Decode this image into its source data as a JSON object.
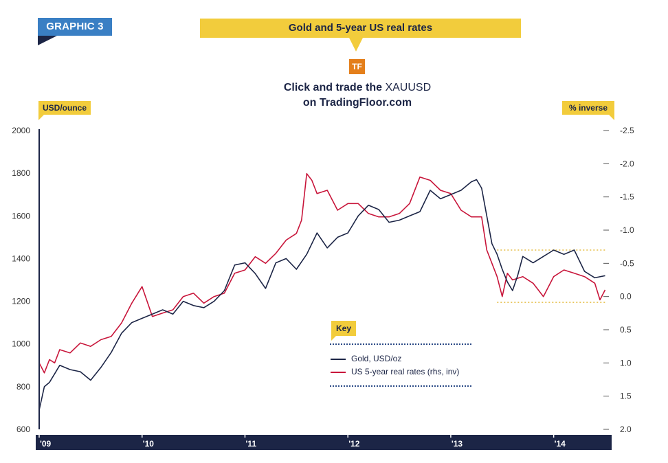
{
  "header": {
    "graphic_label": "GRAPHIC 3",
    "title": "Gold and 5-year US real rates",
    "logo_text": "TF",
    "cta_prefix": "Click and trade the ",
    "cta_symbol": "XAUUSD",
    "cta_line2": "on TradingFloor.com"
  },
  "colors": {
    "gold_series": "#1c2546",
    "real_rates_series": "#c8153a",
    "accent_yellow": "#f2cc3c",
    "axis_bar": "#1c2546",
    "graphic_tag": "#3a7fc4",
    "logo_orange": "#e47f1b",
    "range_band": "#e0b020"
  },
  "legend": {
    "key_label": "Key",
    "placement": "center-bottom"
  },
  "chart_data": {
    "type": "line",
    "title": "Gold and 5-year US real rates",
    "xlabel": "",
    "ylabel": "USD/ounce",
    "y2label": "% inverse",
    "xlim": [
      2009.0,
      2014.55
    ],
    "ylim": [
      600,
      2000
    ],
    "y2lim": [
      2.0,
      -2.5
    ],
    "y2_inverted": true,
    "grid": false,
    "x_ticks": [
      {
        "value": 2009,
        "label": "'09"
      },
      {
        "value": 2010,
        "label": "'10"
      },
      {
        "value": 2011,
        "label": "'11"
      },
      {
        "value": 2012,
        "label": "'12"
      },
      {
        "value": 2013,
        "label": "'13"
      },
      {
        "value": 2014,
        "label": "'14"
      }
    ],
    "y_ticks": [
      {
        "value": 600,
        "label": "600"
      },
      {
        "value": 800,
        "label": "800"
      },
      {
        "value": 1000,
        "label": "1000"
      },
      {
        "value": 1200,
        "label": "1200"
      },
      {
        "value": 1400,
        "label": "1400"
      },
      {
        "value": 1600,
        "label": "1600"
      },
      {
        "value": 1800,
        "label": "1800"
      },
      {
        "value": 2000,
        "label": "2000"
      }
    ],
    "y2_ticks": [
      {
        "value": -2.5,
        "label": "-2.5"
      },
      {
        "value": -2.0,
        "label": "-2.0"
      },
      {
        "value": -1.5,
        "label": "-1.5"
      },
      {
        "value": -1.0,
        "label": "-1.0"
      },
      {
        "value": -0.5,
        "label": "-0.5"
      },
      {
        "value": 0.0,
        "label": "0.0"
      },
      {
        "value": 0.5,
        "label": "0.5"
      },
      {
        "value": 1.0,
        "label": "1.0"
      },
      {
        "value": 1.5,
        "label": "1.5"
      },
      {
        "value": 2.0,
        "label": "2.0"
      }
    ],
    "range_band": {
      "x": [
        2013.45,
        2014.5
      ],
      "y": [
        1195,
        1440
      ]
    },
    "series": [
      {
        "name": "Gold, USD/oz",
        "axis": "left",
        "x": [
          2009.0,
          2009.05,
          2009.1,
          2009.15,
          2009.2,
          2009.3,
          2009.4,
          2009.5,
          2009.6,
          2009.7,
          2009.8,
          2009.9,
          2010.0,
          2010.1,
          2010.2,
          2010.3,
          2010.4,
          2010.5,
          2010.6,
          2010.7,
          2010.8,
          2010.9,
          2011.0,
          2011.1,
          2011.2,
          2011.3,
          2011.4,
          2011.5,
          2011.6,
          2011.7,
          2011.8,
          2011.9,
          2012.0,
          2012.1,
          2012.2,
          2012.3,
          2012.4,
          2012.5,
          2012.6,
          2012.7,
          2012.8,
          2012.9,
          2013.0,
          2013.1,
          2013.2,
          2013.25,
          2013.3,
          2013.35,
          2013.4,
          2013.45,
          2013.5,
          2013.55,
          2013.6,
          2013.65,
          2013.7,
          2013.8,
          2013.9,
          2014.0,
          2014.1,
          2014.2,
          2014.3,
          2014.4,
          2014.5
        ],
        "y": [
          690,
          800,
          820,
          860,
          900,
          880,
          870,
          830,
          890,
          960,
          1050,
          1100,
          1120,
          1140,
          1160,
          1140,
          1200,
          1180,
          1170,
          1200,
          1250,
          1370,
          1380,
          1330,
          1260,
          1380,
          1400,
          1350,
          1420,
          1520,
          1450,
          1500,
          1520,
          1600,
          1650,
          1630,
          1570,
          1580,
          1600,
          1620,
          1720,
          1680,
          1700,
          1720,
          1760,
          1770,
          1730,
          1600,
          1470,
          1420,
          1350,
          1290,
          1250,
          1320,
          1410,
          1380,
          1410,
          1440,
          1420,
          1440,
          1340,
          1310,
          1320
        ]
      },
      {
        "name": "US 5-year real rates (rhs, inv)",
        "axis": "right",
        "x": [
          2009.0,
          2009.05,
          2009.1,
          2009.15,
          2009.2,
          2009.3,
          2009.4,
          2009.5,
          2009.6,
          2009.7,
          2009.8,
          2009.9,
          2010.0,
          2010.1,
          2010.2,
          2010.3,
          2010.4,
          2010.5,
          2010.6,
          2010.7,
          2010.8,
          2010.9,
          2011.0,
          2011.1,
          2011.2,
          2011.3,
          2011.4,
          2011.5,
          2011.55,
          2011.6,
          2011.65,
          2011.7,
          2011.8,
          2011.9,
          2012.0,
          2012.1,
          2012.2,
          2012.3,
          2012.4,
          2012.5,
          2012.6,
          2012.7,
          2012.8,
          2012.9,
          2013.0,
          2013.1,
          2013.2,
          2013.3,
          2013.35,
          2013.4,
          2013.45,
          2013.5,
          2013.55,
          2013.6,
          2013.7,
          2013.8,
          2013.9,
          2014.0,
          2014.1,
          2014.2,
          2014.3,
          2014.4,
          2014.45,
          2014.5
        ],
        "y": [
          1.0,
          1.15,
          0.95,
          1.0,
          0.8,
          0.85,
          0.7,
          0.75,
          0.65,
          0.6,
          0.4,
          0.1,
          -0.15,
          0.3,
          0.25,
          0.2,
          0.0,
          -0.05,
          0.1,
          0.0,
          -0.05,
          -0.35,
          -0.4,
          -0.6,
          -0.5,
          -0.65,
          -0.85,
          -0.95,
          -1.15,
          -1.85,
          -1.75,
          -1.55,
          -1.6,
          -1.3,
          -1.4,
          -1.4,
          -1.25,
          -1.2,
          -1.2,
          -1.25,
          -1.4,
          -1.8,
          -1.75,
          -1.6,
          -1.55,
          -1.3,
          -1.2,
          -1.2,
          -0.7,
          -0.5,
          -0.3,
          0.0,
          -0.35,
          -0.25,
          -0.3,
          -0.2,
          0.0,
          -0.3,
          -0.4,
          -0.35,
          -0.3,
          -0.2,
          0.05,
          -0.1
        ]
      }
    ]
  }
}
